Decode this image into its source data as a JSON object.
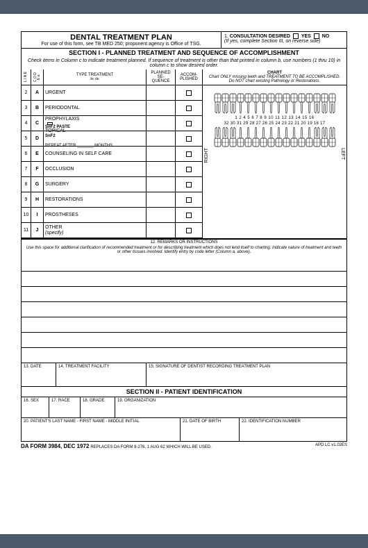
{
  "header": {
    "title": "DENTAL TREATMENT PLAN",
    "subtitle": "For use of this form, see TB MED 250; proponent agency is Office of TSG.",
    "consult_num": "1.",
    "consult_label": "CONSULTATION DESIRED",
    "yes": "YES",
    "no": "NO",
    "consult_note": "(If yes, complete Section III, on reverse side)"
  },
  "section1": {
    "title": "SECTION I - PLANNED TREATMENT AND SEQUENCE OF ACCOMPLISHMENT",
    "instruction": "Check items in Column c to indicate treatment planned. If sequence of treatment is other than that printed in column b, use numbers (1 thru 10) in column c to show desired order."
  },
  "cols": {
    "line": "L\nI\nN\nE",
    "code": "C\nO\nD\nE\na",
    "type": "TYPE TREATMENT",
    "type_sub": "bc          de",
    "seq": "PLANNED\nSE-\nQUENCE",
    "acc": "ACCOM-\nPLISHED"
  },
  "rows": [
    {
      "n": "2",
      "c": "A",
      "t": "URGENT"
    },
    {
      "n": "3",
      "c": "B",
      "t": "PERIODONTAL"
    },
    {
      "n": "4",
      "c": "C",
      "t": "PROPHYLAXIS",
      "extra": "SnF2  PASTE",
      "cb": true
    },
    {
      "n": "5",
      "c": "D",
      "t": "TOPICAL",
      "extra": "SnF2",
      "t2": "REPEAT AFTER _______ MONTHS"
    },
    {
      "n": "6",
      "c": "E",
      "t": "COUNSELING IN SELF CARE"
    },
    {
      "n": "7",
      "c": "F",
      "t": "OCCLUSION"
    },
    {
      "n": "8",
      "c": "G",
      "t": "SURGERY"
    },
    {
      "n": "9",
      "c": "H",
      "t": "RESTORATIONS"
    },
    {
      "n": "10",
      "c": "I",
      "t": "PROSTHESES"
    },
    {
      "n": "11",
      "c": "J",
      "t": "OTHER",
      "extra": "(specify)",
      "italic": true
    }
  ],
  "chart": {
    "title": "CHART",
    "sub1": "Chart ONLY missing teeth and TREATMENT TO BE ACCOMPLISHED.",
    "sub2": "Do NOT chart existing Pathology or Restorations.",
    "right": "RIGHT",
    "left": "LEFT",
    "upper_nums": "1 2 4 5 6 7 8 9 10 11 12 13    14   15   16",
    "lower_nums": "32 30  31 29   28 27 26 25 24 23  22 21   20   19 18 17"
  },
  "remarks": {
    "hdr": "12. REMARKS OR INSTRUCTIONS",
    "inst": "Use this space for additional clarification of recommended treatment or for describing treatment which does not lend itself to charting. Indicate nature of treatment and teeth or other tissues involved. Identify entry by code letter (Column a, above)."
  },
  "fields13": {
    "f13": "13. DATE",
    "f14": "14. TREATMENT FACILITY",
    "f15": "15. SIGNATURE OF DENTIST RECORDING TREATMENT PLAN"
  },
  "section2": "SECTION II - PATIENT IDENTIFICATION",
  "fields16": {
    "f16": "16. SEX",
    "f17": "17. RACE",
    "f18": "18. GRADE",
    "f19": "19. ORGANIZATION"
  },
  "fields20": {
    "f20": "20. PATIENT'S LAST NAME - FIRST NAME - MIDDLE INITIAL",
    "f21": "21. DATE OF BIRTH",
    "f22": "22. IDENTIFICATION NUMBER"
  },
  "footer": {
    "form": "DA FORM 3984, DEC 1972",
    "replaces": "REPLACES DA FORM 8-276, 1 AUG 62 WHICH WILL BE USED.",
    "version": "APD LC v1.02ES"
  }
}
